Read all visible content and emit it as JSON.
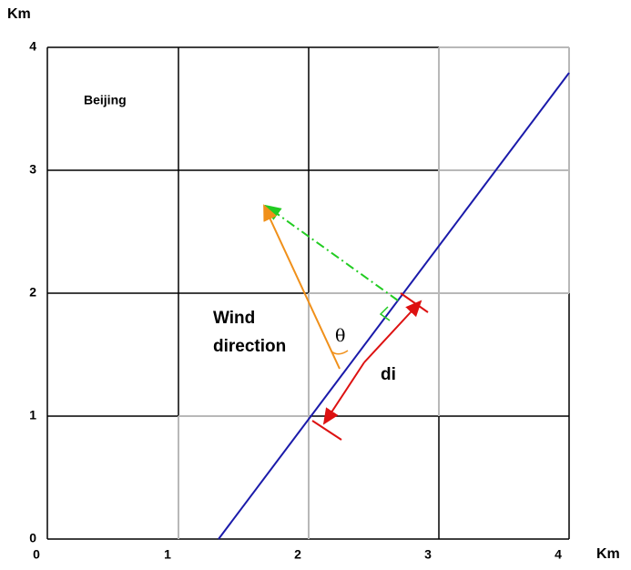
{
  "axes": {
    "y_unit": "Km",
    "x_unit": "Km",
    "y_ticks": [
      4,
      3,
      2,
      1,
      0
    ],
    "x_ticks": [
      0,
      1,
      2,
      3,
      4
    ]
  },
  "labels": {
    "city": "Beijing",
    "wind_line1": "Wind",
    "wind_line2": "direction",
    "angle": "θ",
    "distance": "di"
  }
}
